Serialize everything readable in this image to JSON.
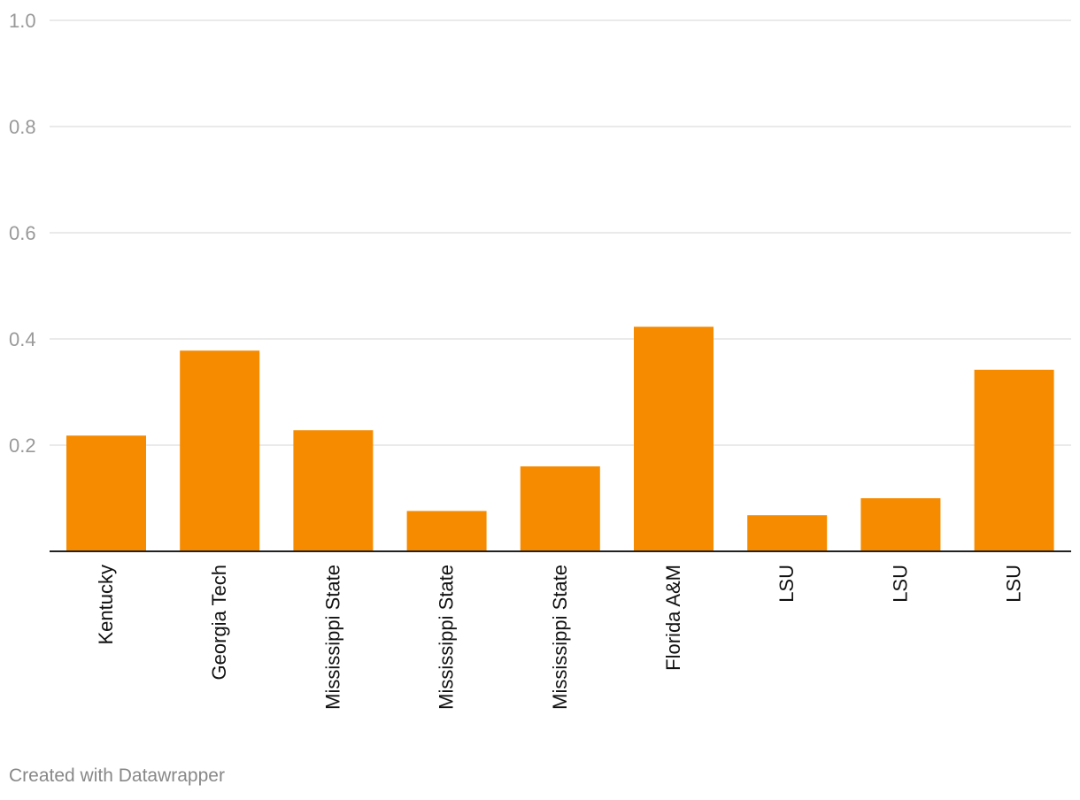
{
  "chart_data": {
    "type": "bar",
    "categories": [
      "Kentucky",
      "Georgia Tech",
      "Mississippi State",
      "Mississippi State",
      "Mississippi State",
      "Florida A&M",
      "LSU",
      "LSU",
      "LSU"
    ],
    "values": [
      0.218,
      0.378,
      0.228,
      0.076,
      0.16,
      0.423,
      0.068,
      0.1,
      0.342
    ],
    "ylim": [
      0,
      1.0
    ],
    "yticks": [
      "1.0",
      "0.8",
      "0.6",
      "0.4",
      "0.2"
    ],
    "ytick_values": [
      1.0,
      0.8,
      0.6,
      0.4,
      0.2
    ],
    "title": "",
    "xlabel": "",
    "ylabel": "",
    "grid": true,
    "bar_color": "#f78b00"
  },
  "footer": {
    "credit": "Created with Datawrapper"
  }
}
